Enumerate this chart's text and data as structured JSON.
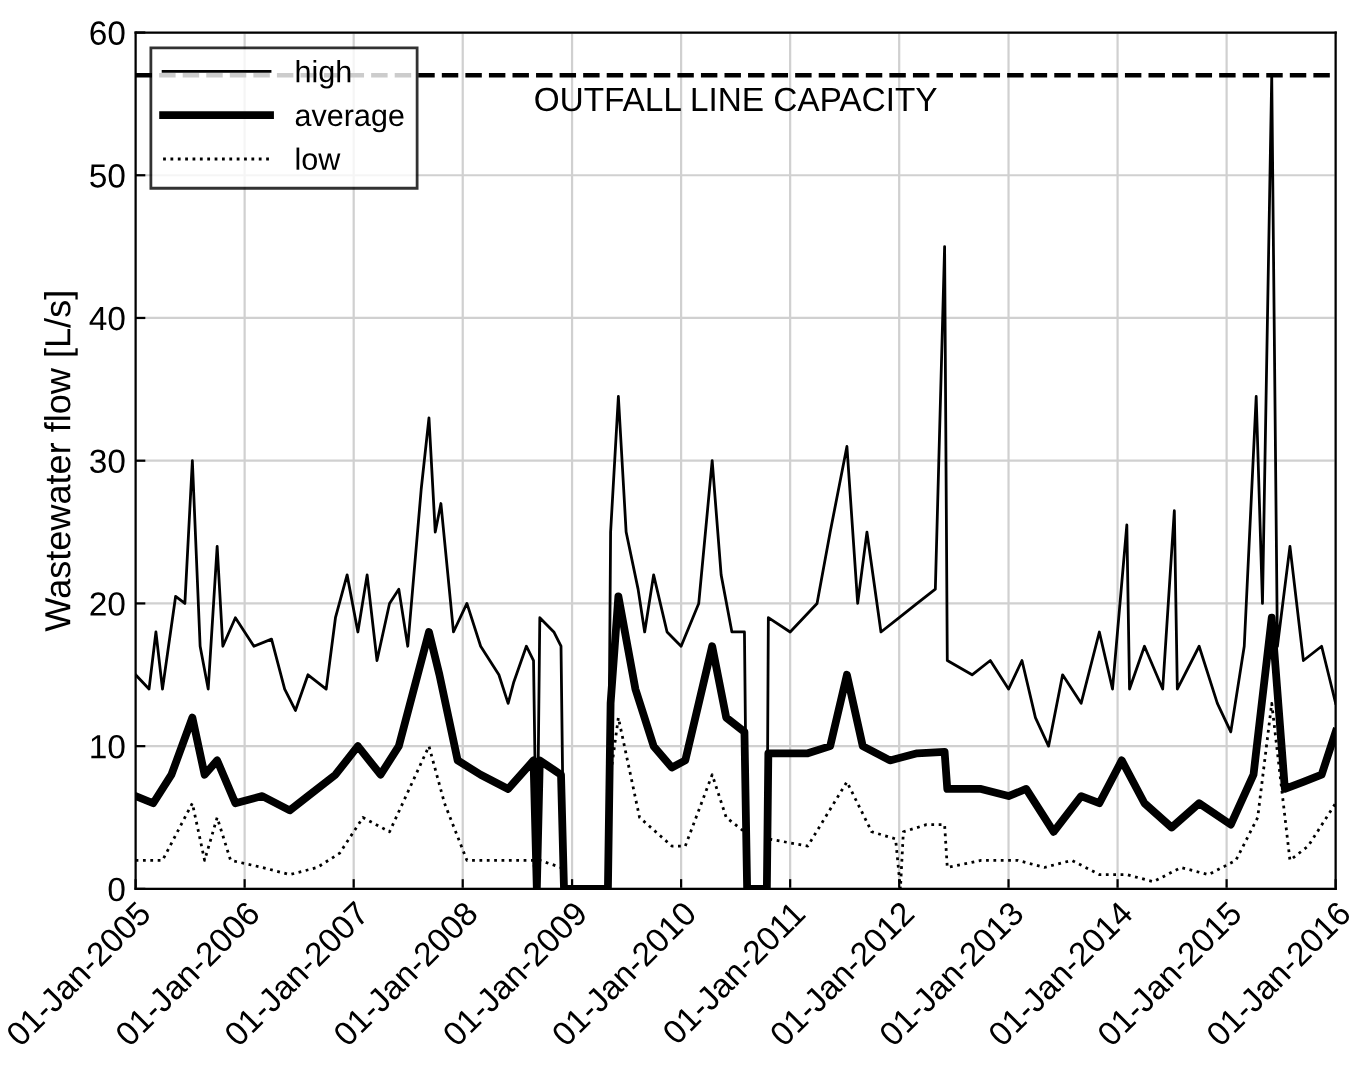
{
  "chart_data": {
    "type": "line",
    "ylabel": "Wastewater flow [L/s]",
    "xlim": [
      "2005-01-01",
      "2016-01-01"
    ],
    "ylim": [
      0,
      60
    ],
    "yticks": [
      0,
      10,
      20,
      30,
      40,
      50,
      60
    ],
    "xticks": [
      {
        "value": "2005-01-01",
        "label": "01-Jan-2005"
      },
      {
        "value": "2006-01-01",
        "label": "01-Jan-2006"
      },
      {
        "value": "2007-01-01",
        "label": "01-Jan-2007"
      },
      {
        "value": "2008-01-01",
        "label": "01-Jan-2008"
      },
      {
        "value": "2009-01-01",
        "label": "01-Jan-2009"
      },
      {
        "value": "2010-01-01",
        "label": "01-Jan-2010"
      },
      {
        "value": "2011-01-01",
        "label": "01-Jan-2011"
      },
      {
        "value": "2012-01-01",
        "label": "01-Jan-2012"
      },
      {
        "value": "2013-01-01",
        "label": "01-Jan-2013"
      },
      {
        "value": "2014-01-01",
        "label": "01-Jan-2014"
      },
      {
        "value": "2015-01-01",
        "label": "01-Jan-2015"
      },
      {
        "value": "2016-01-01",
        "label": "01-Jan-2016"
      }
    ],
    "grid": true,
    "legend": "top left",
    "ref_lines": [
      {
        "axis": "y",
        "value": 57,
        "label": "OUTFALL LINE CAPACITY",
        "color": "#000000",
        "line_style": "dashed"
      }
    ],
    "series": [
      {
        "name": "high",
        "color": "#000000",
        "line_style": "solid",
        "x": [
          "2005-01-01",
          "2005-02-15",
          "2005-03-10",
          "2005-04-01",
          "2005-05-15",
          "2005-06-15",
          "2005-07-10",
          "2005-08-05",
          "2005-09-01",
          "2005-10-01",
          "2005-10-20",
          "2005-12-01",
          "2006-02-01",
          "2006-04-01",
          "2006-05-15",
          "2006-06-20",
          "2006-08-01",
          "2006-10-01",
          "2006-11-01",
          "2006-12-10",
          "2007-01-15",
          "2007-02-15",
          "2007-03-20",
          "2007-05-01",
          "2007-06-01",
          "2007-07-01",
          "2007-08-15",
          "2007-09-10",
          "2007-10-01",
          "2007-10-20",
          "2007-12-01",
          "2008-01-15",
          "2008-03-01",
          "2008-05-01",
          "2008-06-01",
          "2008-06-20",
          "2008-08-01",
          "2008-08-25",
          "2008-09-05",
          "2008-09-15",
          "2008-11-01",
          "2008-11-25",
          "2008-12-05",
          "2009-05-01",
          "2009-05-10",
          "2009-06-05",
          "2009-07-01",
          "2009-08-10",
          "2009-09-01",
          "2009-10-01",
          "2009-11-15",
          "2010-01-01",
          "2010-03-01",
          "2010-04-15",
          "2010-05-15",
          "2010-06-20",
          "2010-08-01",
          "2010-08-10",
          "2010-10-15",
          "2010-10-20",
          "2011-01-01",
          "2011-04-01",
          "2011-05-15",
          "2011-07-10",
          "2011-08-15",
          "2011-09-15",
          "2011-11-01",
          "2012-01-01",
          "2012-03-01",
          "2012-05-01",
          "2012-06-01",
          "2012-06-10",
          "2012-09-01",
          "2012-11-01",
          "2013-01-01",
          "2013-02-15",
          "2013-04-01",
          "2013-05-15",
          "2013-07-01",
          "2013-09-01",
          "2013-11-01",
          "2013-12-15",
          "2014-02-01",
          "2014-02-10",
          "2014-04-01",
          "2014-06-01",
          "2014-07-10",
          "2014-07-20",
          "2014-10-01",
          "2014-12-01",
          "2015-01-15",
          "2015-03-01",
          "2015-04-10",
          "2015-05-01",
          "2015-06-01",
          "2015-06-20",
          "2015-08-01",
          "2015-09-15",
          "2015-11-15",
          "2016-01-01"
        ],
        "values": [
          15,
          14,
          18,
          14,
          20.5,
          20,
          30,
          17,
          14,
          24,
          17,
          19,
          17,
          17.5,
          14,
          12.5,
          15,
          14,
          19,
          22,
          18,
          22,
          16,
          20,
          21,
          17,
          28,
          33,
          25,
          27,
          18,
          20,
          17,
          15,
          13,
          14.5,
          17,
          16,
          0,
          19,
          18,
          17,
          0,
          0,
          25,
          34.5,
          25,
          21,
          18,
          22,
          18,
          17,
          20,
          30,
          22,
          18,
          18,
          0,
          0,
          19,
          18,
          20,
          25,
          31,
          20,
          25,
          18,
          19,
          20,
          21,
          45,
          16,
          15,
          16,
          14,
          16,
          12,
          10,
          15,
          13,
          18,
          14,
          25.5,
          14,
          17,
          14,
          26.5,
          14,
          17,
          13,
          11,
          17,
          34.5,
          20,
          57,
          17,
          24,
          16,
          17,
          13
        ]
      },
      {
        "name": "average",
        "color": "#000000",
        "line_style": "solid",
        "x": [
          "2005-01-01",
          "2005-03-01",
          "2005-05-01",
          "2005-07-10",
          "2005-08-20",
          "2005-10-01",
          "2005-12-01",
          "2006-03-01",
          "2006-06-01",
          "2006-08-01",
          "2006-11-01",
          "2007-01-15",
          "2007-04-01",
          "2007-06-01",
          "2007-09-10",
          "2007-10-15",
          "2007-12-15",
          "2008-03-01",
          "2008-06-01",
          "2008-08-25",
          "2008-09-05",
          "2008-09-15",
          "2008-11-25",
          "2008-12-05",
          "2009-05-01",
          "2009-05-10",
          "2009-06-05",
          "2009-08-01",
          "2009-10-01",
          "2009-12-01",
          "2010-01-15",
          "2010-04-15",
          "2010-06-01",
          "2010-08-01",
          "2010-08-10",
          "2010-10-15",
          "2010-10-20",
          "2011-03-01",
          "2011-05-15",
          "2011-07-10",
          "2011-09-01",
          "2011-12-01",
          "2012-03-01",
          "2012-06-01",
          "2012-06-10",
          "2012-10-01",
          "2013-01-01",
          "2013-03-01",
          "2013-06-01",
          "2013-09-01",
          "2013-11-01",
          "2014-01-15",
          "2014-04-01",
          "2014-07-01",
          "2014-10-01",
          "2015-01-15",
          "2015-04-01",
          "2015-06-01",
          "2015-07-15",
          "2015-09-15",
          "2015-11-15",
          "2016-01-01"
        ],
        "values": [
          6.5,
          6,
          8,
          12,
          8,
          9,
          6,
          6.5,
          5.5,
          6.5,
          8,
          10,
          8,
          10,
          18,
          15,
          9,
          8,
          7,
          9,
          0,
          9,
          8,
          0,
          0,
          13,
          20.5,
          14,
          10,
          8.5,
          9,
          17,
          12,
          11,
          0,
          0,
          9.5,
          9.5,
          10,
          15,
          10,
          9,
          9.5,
          9.6,
          7,
          7,
          6.5,
          7,
          4,
          6.5,
          6,
          9,
          6,
          4.3,
          6,
          4.5,
          8,
          19,
          7,
          7.5,
          8,
          11
        ]
      },
      {
        "name": "low",
        "color": "#000000",
        "line_style": "dotted",
        "x": [
          "2005-01-01",
          "2005-04-01",
          "2005-07-10",
          "2005-08-20",
          "2005-10-01",
          "2005-11-15",
          "2006-03-01",
          "2006-06-01",
          "2006-09-01",
          "2006-11-15",
          "2007-02-01",
          "2007-05-01",
          "2007-09-10",
          "2007-11-01",
          "2008-01-15",
          "2008-04-01",
          "2008-08-25",
          "2008-09-05",
          "2008-09-15",
          "2008-11-25",
          "2008-12-05",
          "2009-05-01",
          "2009-05-10",
          "2009-06-05",
          "2009-08-15",
          "2009-12-01",
          "2010-01-15",
          "2010-04-15",
          "2010-06-01",
          "2010-08-01",
          "2010-08-10",
          "2010-10-15",
          "2010-10-20",
          "2011-03-01",
          "2011-07-10",
          "2011-10-01",
          "2011-12-20",
          "2012-01-05",
          "2012-01-15",
          "2012-04-01",
          "2012-06-01",
          "2012-06-10",
          "2012-10-01",
          "2013-02-01",
          "2013-05-01",
          "2013-08-01",
          "2013-11-01",
          "2014-02-01",
          "2014-05-01",
          "2014-08-01",
          "2014-11-01",
          "2015-02-01",
          "2015-04-15",
          "2015-06-01",
          "2015-08-01",
          "2015-10-01",
          "2016-01-01"
        ],
        "values": [
          2,
          2,
          6,
          2,
          5,
          2,
          1.5,
          1,
          1.5,
          2.5,
          5,
          4,
          10,
          6,
          2,
          2,
          2,
          0,
          2,
          1.5,
          0,
          0,
          8,
          12,
          5,
          3,
          3,
          8,
          5,
          4,
          0,
          0,
          3.5,
          3,
          7.5,
          4,
          3.5,
          0,
          4,
          4.5,
          4.5,
          1.5,
          2,
          2,
          1.5,
          2,
          1,
          1,
          0.5,
          1.5,
          1,
          2,
          5,
          13,
          2,
          3,
          6
        ]
      }
    ]
  }
}
